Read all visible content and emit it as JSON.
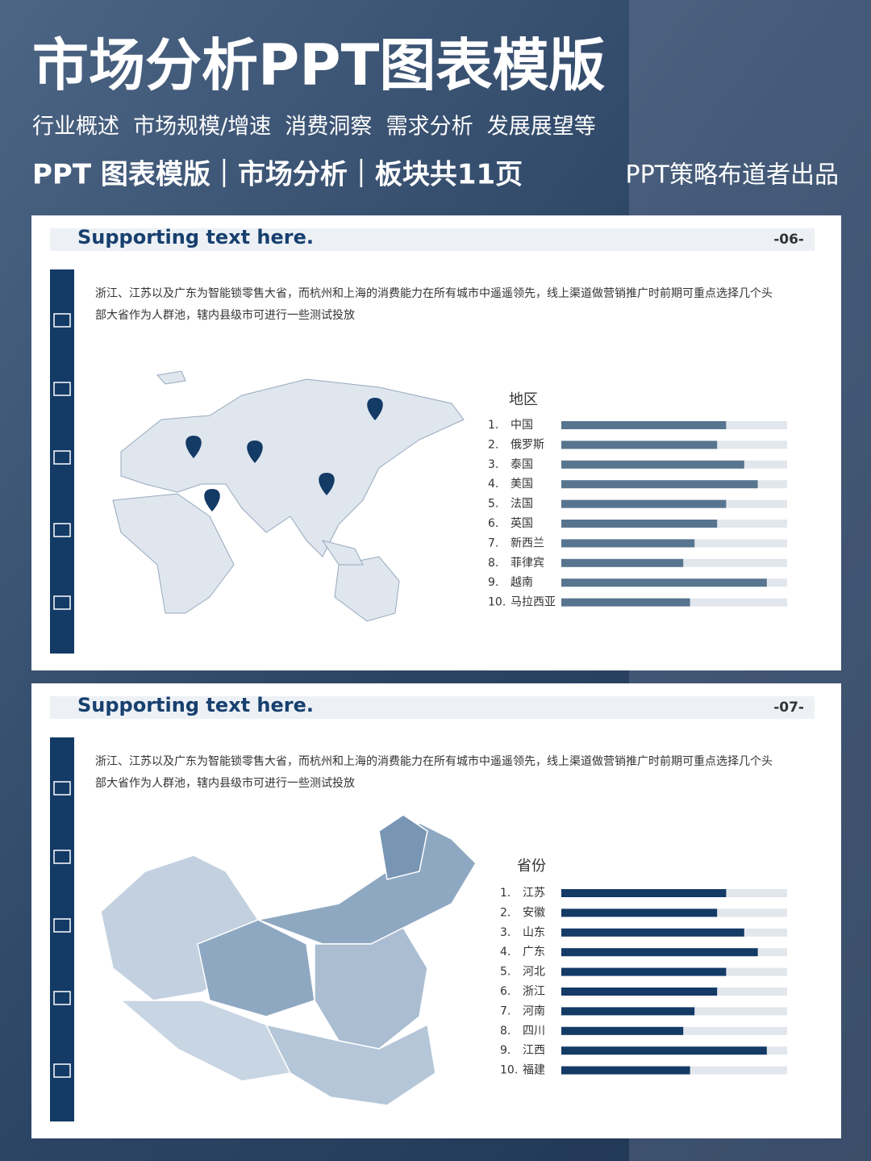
{
  "header": {
    "title": "市场分析PPT图表模版",
    "subtitle": "行业概述  市场规模/增速  消费洞察  需求分析  发展展望等",
    "tagline": "PPT 图表模版｜市场分析｜板块共11页",
    "credit": "PPT策略布道者出品"
  },
  "slides": [
    {
      "title": "Supporting text here.",
      "page": "-06-",
      "text": [
        "浙江、江苏以及广东为智能锁零售大省，而杭州和上海的消费能力在所有城市中遥遥领先，线上渠道做营销推广时前期可重点选择几个头",
        "部大省作为人群池，辖内县级市可进行一些测试投放"
      ],
      "chart_data": {
        "type": "bar",
        "orientation": "horizontal",
        "title": "地区",
        "rank_labels": [
          "1.",
          "2.",
          "3.",
          "4.",
          "5.",
          "6.",
          "7.",
          "8.",
          "9.",
          "10."
        ],
        "categories": [
          "中国",
          "俄罗斯",
          "泰国",
          "美国",
          "法国",
          "英国",
          "新西兰",
          "菲律宾",
          "越南",
          "马拉西亚"
        ],
        "values": [
          73,
          69,
          81,
          87,
          73,
          69,
          59,
          54,
          91,
          57
        ],
        "color": "#58758f",
        "track_color": "#e2e7ed",
        "xlim": [
          0,
          100
        ]
      }
    },
    {
      "title": "Supporting text here.",
      "page": "-07-",
      "text": [
        "浙江、江苏以及广东为智能锁零售大省，而杭州和上海的消费能力在所有城市中遥遥领先，线上渠道做营销推广时前期可重点选择几个头",
        "部大省作为人群池，辖内县级市可进行一些测试投放"
      ],
      "chart_data": {
        "type": "bar",
        "orientation": "horizontal",
        "title": "省份",
        "rank_labels": [
          "1.",
          "2.",
          "3.",
          "4.",
          "5.",
          "6.",
          "7.",
          "8.",
          "9.",
          "10."
        ],
        "categories": [
          "江苏",
          "安徽",
          "山东",
          "广东",
          "河北",
          "浙江",
          "河南",
          "四川",
          "江西",
          "福建"
        ],
        "values": [
          73,
          69,
          81,
          87,
          73,
          69,
          59,
          54,
          91,
          57
        ],
        "color": "#143a66",
        "track_color": "#e2e7ed",
        "xlim": [
          0,
          100
        ]
      }
    }
  ]
}
